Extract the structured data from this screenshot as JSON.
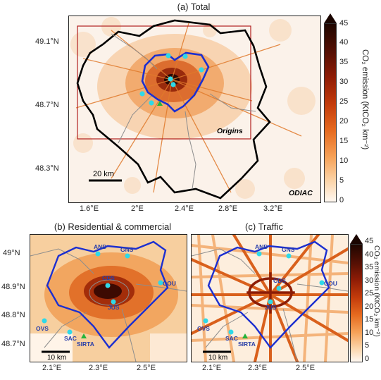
{
  "panels": {
    "a": {
      "title": "(a) Total",
      "origins_label": "Origins",
      "odiac_label": "ODIAC",
      "scale_label": "20 km",
      "xticks": [
        "1.6°E",
        "2°E",
        "2.4°E",
        "2.8°E",
        "3.2°E"
      ],
      "yticks": [
        "49.1°N",
        "48.7°N",
        "48.3°N"
      ]
    },
    "b": {
      "title": "(b) Residential & commercial",
      "scale_label": "10 km",
      "xticks": [
        "2.1°E",
        "2.3°E",
        "2.5°E"
      ],
      "yticks": [
        "49°N",
        "48.9°N",
        "48.8°N",
        "48.7°N"
      ]
    },
    "c": {
      "title": "(c) Traffic",
      "scale_label": "10 km",
      "xticks": [
        "2.1°E",
        "2.3°E",
        "2.5°E"
      ]
    }
  },
  "sites": [
    "AND",
    "GNS",
    "CDS",
    "COU",
    "JUS",
    "OVS",
    "SAC",
    "SIRTA"
  ],
  "colorbar": {
    "title": "CO₂ emission (KtCO₂ km⁻²)",
    "ticks": [
      "45",
      "40",
      "35",
      "30",
      "25",
      "20",
      "15",
      "10",
      "5",
      "0"
    ]
  },
  "colors": {
    "boundary_blue": "#1c2fd0",
    "region_black": "#000000",
    "site_cyan": "#2fd9e8",
    "origins_red": "#b22020"
  }
}
